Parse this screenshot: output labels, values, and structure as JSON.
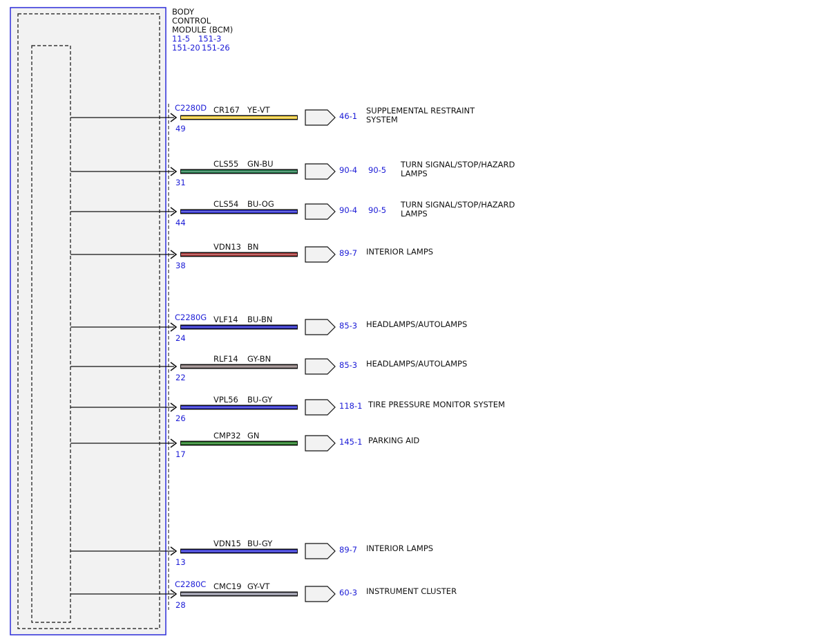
{
  "module": {
    "title_lines": [
      "BODY",
      "CONTROL",
      "MODULE (BCM)"
    ],
    "ref_lines": [
      [
        "11-5",
        "151-3"
      ],
      [
        "151-20",
        "151-26"
      ]
    ]
  },
  "colors": {
    "module_border": "#2b2bd9",
    "module_fill": "#f2f2f2",
    "ref_text": "#1a1ad6",
    "wire_outline": "#111111"
  },
  "circuits": [
    {
      "connector": "C2280D",
      "pin": "49",
      "circuit": "CR167",
      "wire_color": "YE-VT",
      "stripe": "#f2cf3a",
      "refs": [
        "46-1"
      ],
      "destination": [
        "SUPPLEMENTAL RESTRAINT",
        "SYSTEM"
      ]
    },
    {
      "connector": "",
      "pin": "31",
      "circuit": "CLS55",
      "wire_color": "GN-BU",
      "stripe": "#1f7a4a",
      "refs": [
        "90-4",
        "90-5"
      ],
      "destination": [
        "TURN SIGNAL/STOP/HAZARD",
        "LAMPS"
      ]
    },
    {
      "connector": "",
      "pin": "44",
      "circuit": "CLS54",
      "wire_color": "BU-OG",
      "stripe": "#2b2bd0",
      "refs": [
        "90-4",
        "90-5"
      ],
      "destination": [
        "TURN SIGNAL/STOP/HAZARD",
        "LAMPS"
      ]
    },
    {
      "connector": "",
      "pin": "38",
      "circuit": "VDN13",
      "wire_color": "BN",
      "stripe": "#a83232",
      "refs": [
        "89-7"
      ],
      "destination": [
        "INTERIOR LAMPS"
      ]
    },
    {
      "connector": "C2280G",
      "pin": "24",
      "circuit": "VLF14",
      "wire_color": "BU-BN",
      "stripe": "#2020c0",
      "refs": [
        "85-3"
      ],
      "destination": [
        "HEADLAMPS/AUTOLAMPS"
      ]
    },
    {
      "connector": "",
      "pin": "22",
      "circuit": "RLF14",
      "wire_color": "GY-BN",
      "stripe": "#8a7a7a",
      "refs": [
        "85-3"
      ],
      "destination": [
        "HEADLAMPS/AUTOLAMPS"
      ]
    },
    {
      "connector": "",
      "pin": "26",
      "circuit": "VPL56",
      "wire_color": "BU-GY",
      "stripe": "#2b2bd0",
      "refs": [
        "118-1"
      ],
      "destination": [
        "TIRE PRESSURE MONITOR SYSTEM"
      ]
    },
    {
      "connector": "",
      "pin": "17",
      "circuit": "CMP32",
      "wire_color": "GN",
      "stripe": "#1e7a1e",
      "refs": [
        "145-1"
      ],
      "destination": [
        "PARKING AID"
      ]
    },
    {
      "connector": "",
      "pin": "13",
      "circuit": "VDN15",
      "wire_color": "BU-GY",
      "stripe": "#2b2bd0",
      "refs": [
        "89-7"
      ],
      "destination": [
        "INTERIOR LAMPS"
      ]
    },
    {
      "connector": "C2280C",
      "pin": "28",
      "circuit": "CMC19",
      "wire_color": "GY-VT",
      "stripe": "#8a8a9a",
      "refs": [
        "60-3"
      ],
      "destination": [
        "INSTRUMENT CLUSTER"
      ]
    }
  ]
}
